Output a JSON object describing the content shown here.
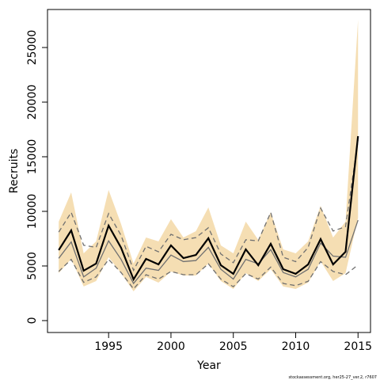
{
  "chart_data": {
    "type": "line",
    "xlabel": "Year",
    "ylabel": "Recruits",
    "footnote": "stockassessment.org, her25-27_ver.2, r7607",
    "x": [
      1991,
      1992,
      1993,
      1994,
      1995,
      1996,
      1997,
      1998,
      1999,
      2000,
      2001,
      2002,
      2003,
      2004,
      2005,
      2006,
      2007,
      2008,
      2009,
      2010,
      2011,
      2012,
      2013,
      2014,
      2015
    ],
    "band": {
      "color": "#f5deb3",
      "upper": [
        9060,
        11740,
        6160,
        7250,
        11960,
        8840,
        5220,
        7610,
        7250,
        9280,
        7610,
        8190,
        10360,
        6880,
        6160,
        9060,
        7390,
        9930,
        6520,
        6160,
        7250,
        10510,
        7610,
        9060,
        27540
      ],
      "lower": [
        4350,
        5650,
        3120,
        3620,
        5800,
        4350,
        2680,
        3990,
        3480,
        4490,
        4130,
        4130,
        5220,
        3620,
        2900,
        4350,
        3620,
        4710,
        3120,
        2900,
        3480,
        5430,
        3620,
        4350,
        9420
      ]
    },
    "series": [
      {
        "color": "#707070",
        "dashed": true,
        "width": 1.3,
        "values": [
          8100,
          9900,
          6900,
          6700,
          9800,
          7800,
          4600,
          6800,
          6300,
          7900,
          7400,
          7600,
          8500,
          6100,
          5300,
          7400,
          7300,
          9900,
          5800,
          5400,
          6700,
          10300,
          8200,
          8600,
          16500
        ]
      },
      {
        "color": "#707070",
        "dashed": true,
        "width": 1.3,
        "values": [
          4500,
          5600,
          3500,
          4000,
          5600,
          4400,
          2900,
          4200,
          3800,
          4500,
          4200,
          4200,
          5200,
          3800,
          3100,
          4300,
          3800,
          4900,
          3400,
          3200,
          3600,
          5400,
          4500,
          4200,
          5100
        ]
      },
      {
        "color": "#707070",
        "dashed": false,
        "width": 1.3,
        "values": [
          5700,
          7200,
          4000,
          4800,
          7300,
          5600,
          3400,
          4800,
          4600,
          6000,
          5400,
          5500,
          6700,
          4700,
          3800,
          5600,
          5200,
          6500,
          4400,
          4000,
          4700,
          7100,
          5900,
          5800,
          9200
        ]
      },
      {
        "color": "#000000",
        "dashed": false,
        "width": 2.2,
        "values": [
          6450,
          8260,
          4570,
          5220,
          8700,
          6670,
          3770,
          5650,
          5140,
          6880,
          5720,
          6010,
          7540,
          5070,
          4280,
          6520,
          5070,
          7030,
          4710,
          4280,
          5140,
          7460,
          5140,
          6300,
          16880
        ]
      }
    ],
    "xlim": [
      1990.1,
      2016
    ],
    "ylim": [
      -1090,
      28480
    ],
    "xticks": [
      1995,
      2000,
      2005,
      2010,
      2015
    ],
    "yticks": [
      0,
      5000,
      10000,
      15000,
      20000,
      25000
    ]
  }
}
